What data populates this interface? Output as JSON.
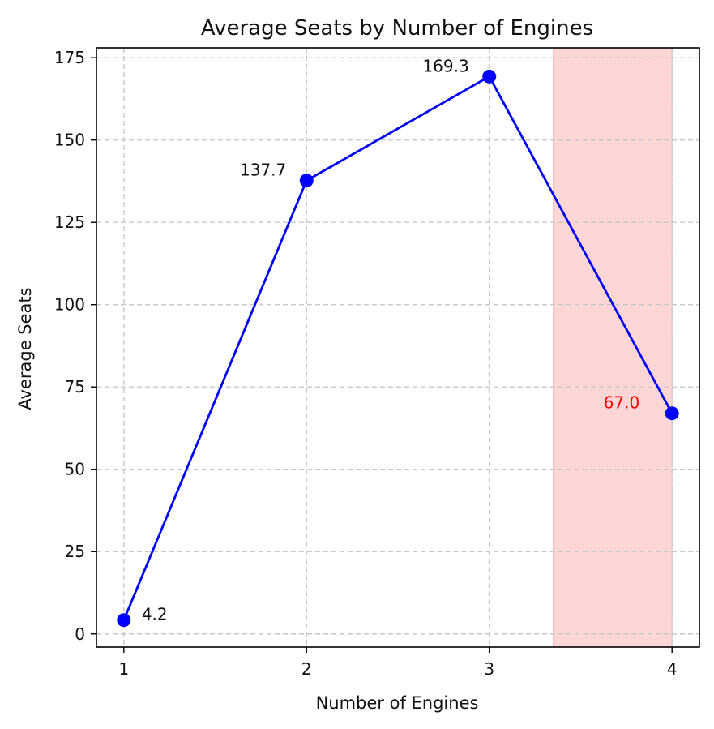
{
  "chart_data": {
    "type": "line",
    "title": "Average Seats by Number of Engines",
    "xlabel": "Number of Engines",
    "ylabel": "Average Seats",
    "x": [
      1,
      2,
      3,
      4
    ],
    "xticks": [
      "1",
      "2",
      "3",
      "4"
    ],
    "yticks": [
      0,
      25,
      50,
      75,
      100,
      125,
      150,
      175
    ],
    "xlim": [
      0.85,
      4.15
    ],
    "ylim": [
      -4,
      178
    ],
    "grid": true,
    "series": [
      {
        "values": [
          4.2,
          137.7,
          169.3,
          67.0
        ],
        "data_labels": [
          "4.2",
          "137.7",
          "169.3",
          "67.0"
        ],
        "color": "#0000ff"
      }
    ],
    "highlight_span": {
      "x_start": 3.35,
      "x_end": 4.0,
      "color": "#ffd6d6"
    },
    "highlight_label_color": "#ff0000"
  }
}
